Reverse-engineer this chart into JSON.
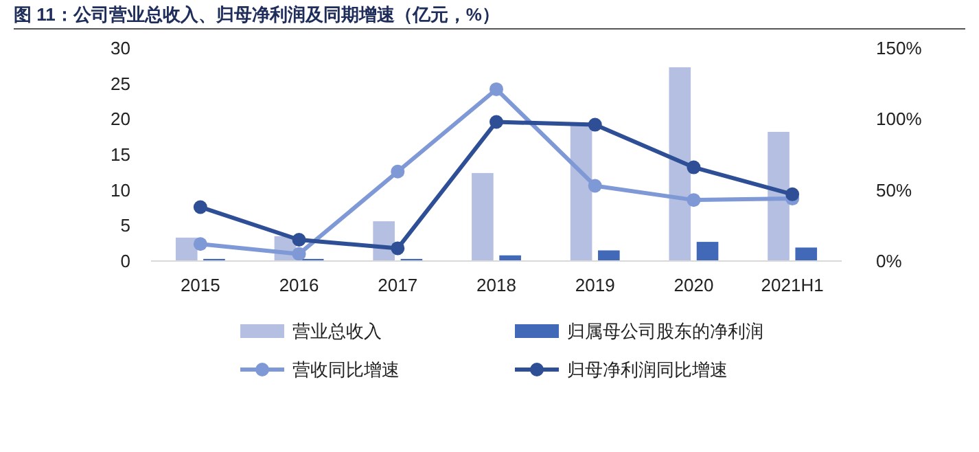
{
  "chart_data": {
    "type": "bar",
    "title": "图 11：公司营业总收入、归母净利润及同期增速（亿元，%）",
    "categories": [
      "2015",
      "2016",
      "2017",
      "2018",
      "2019",
      "2020",
      "2021H1"
    ],
    "series": [
      {
        "name": "营业总收入",
        "color": "#b4bfe2",
        "values": [
          3.3,
          3.5,
          5.6,
          12.4,
          19.3,
          27.3,
          18.2
        ]
      },
      {
        "name": "归属母公司股东的净利润",
        "color": "#4169b8",
        "values": [
          0.3,
          0.3,
          0.3,
          0.8,
          1.5,
          2.7,
          1.9
        ]
      },
      {
        "name": "营收同比增速",
        "type": "line",
        "axis": "y2",
        "color": "#7f98d6",
        "values": [
          12,
          5,
          63,
          121,
          53,
          43,
          44
        ]
      },
      {
        "name": "归母净利润同比增速",
        "type": "line",
        "axis": "y2",
        "color": "#2e4f96",
        "values": [
          38,
          15,
          9,
          98,
          96,
          66,
          47
        ]
      }
    ],
    "ylim": [
      0,
      30
    ],
    "yticks": [
      0,
      5,
      10,
      15,
      20,
      25,
      30
    ],
    "y2lim": [
      0,
      150
    ],
    "y2ticks": [
      {
        "value": 0,
        "label": "0%"
      },
      {
        "value": 50,
        "label": "50%"
      },
      {
        "value": 100,
        "label": "100%"
      },
      {
        "value": 150,
        "label": "150%"
      }
    ],
    "grid": false,
    "legend": "bottom",
    "marker": "circle",
    "line_style": "solid"
  }
}
